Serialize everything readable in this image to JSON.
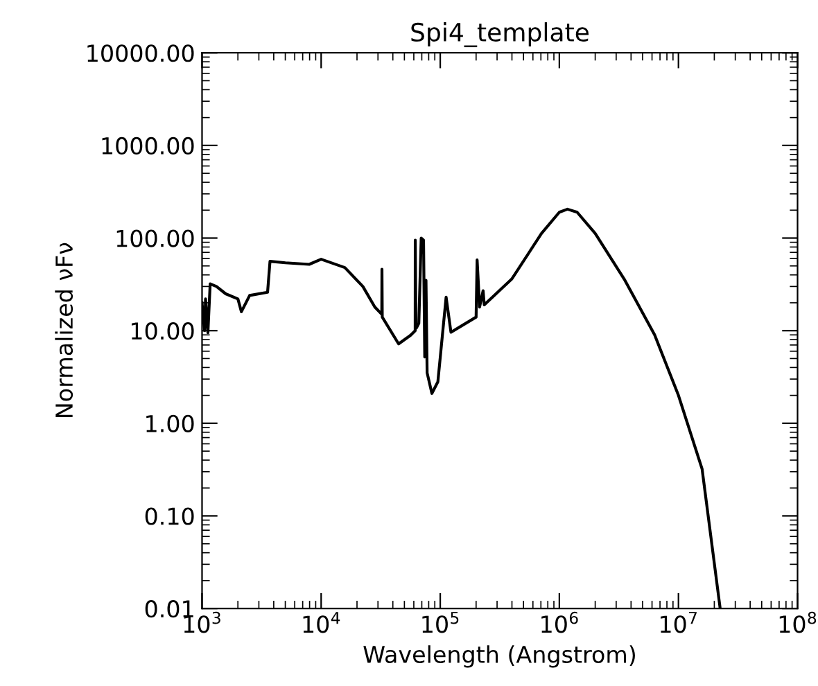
{
  "chart_data": {
    "type": "line",
    "title": "Spi4_template",
    "xlabel": "Wavelength (Angstrom)",
    "ylabel": "Normalized νFν",
    "log": "xy",
    "grid": false,
    "legend": false,
    "marker": "none",
    "line_style": "solid",
    "xlim": [
      1000,
      100000000
    ],
    "ylim": [
      0.01,
      10000
    ],
    "xticks": [
      {
        "value": 1000,
        "label": "10$^{3}$"
      },
      {
        "value": 10000,
        "label": "10$^{4}$"
      },
      {
        "value": 100000,
        "label": "10$^{5}$"
      },
      {
        "value": 1000000,
        "label": "10$^{6}$"
      },
      {
        "value": 10000000,
        "label": "10$^{7}$"
      },
      {
        "value": 100000000,
        "label": "10$^{8}$"
      }
    ],
    "yticks": [
      {
        "value": 0.01,
        "label": "0.01"
      },
      {
        "value": 0.1,
        "label": "0.10"
      },
      {
        "value": 1,
        "label": "1.00"
      },
      {
        "value": 10,
        "label": "10.00"
      },
      {
        "value": 100,
        "label": "100.00"
      },
      {
        "value": 1000,
        "label": "1000.00"
      },
      {
        "value": 10000,
        "label": "10000.00"
      }
    ],
    "series": [
      {
        "color": "#000000",
        "x": [
          1000,
          1050,
          1070,
          1120,
          1170,
          1320,
          1580,
          2000,
          2140,
          2510,
          3550,
          3720,
          5010,
          7940,
          10000,
          15800,
          22400,
          28200,
          32300,
          32400,
          32600,
          44700,
          56200,
          61600,
          61700,
          62500,
          63100,
          66100,
          69200,
          72400,
          74100,
          75900,
          77600,
          85100,
          95500,
          112000,
          123000,
          200000,
          204000,
          214000,
          229000,
          234000,
          398000,
          708000,
          1000000,
          1170000,
          1410000,
          2000000,
          3550000,
          6310000,
          10000000,
          15800000,
          22400000
        ],
        "values": [
          20,
          10,
          22,
          9.5,
          32,
          30,
          25,
          22,
          16,
          24,
          26,
          56,
          54,
          52,
          59,
          48,
          30,
          18,
          15,
          46,
          14,
          7.2,
          8.9,
          10,
          95,
          11,
          10.7,
          12,
          100,
          95,
          5.2,
          35,
          3.5,
          2.1,
          2.8,
          23,
          9.6,
          14,
          58,
          18,
          27,
          19,
          36,
          112,
          190,
          205,
          190,
          112,
          35,
          9,
          2,
          0.32,
          0.01
        ]
      }
    ]
  }
}
